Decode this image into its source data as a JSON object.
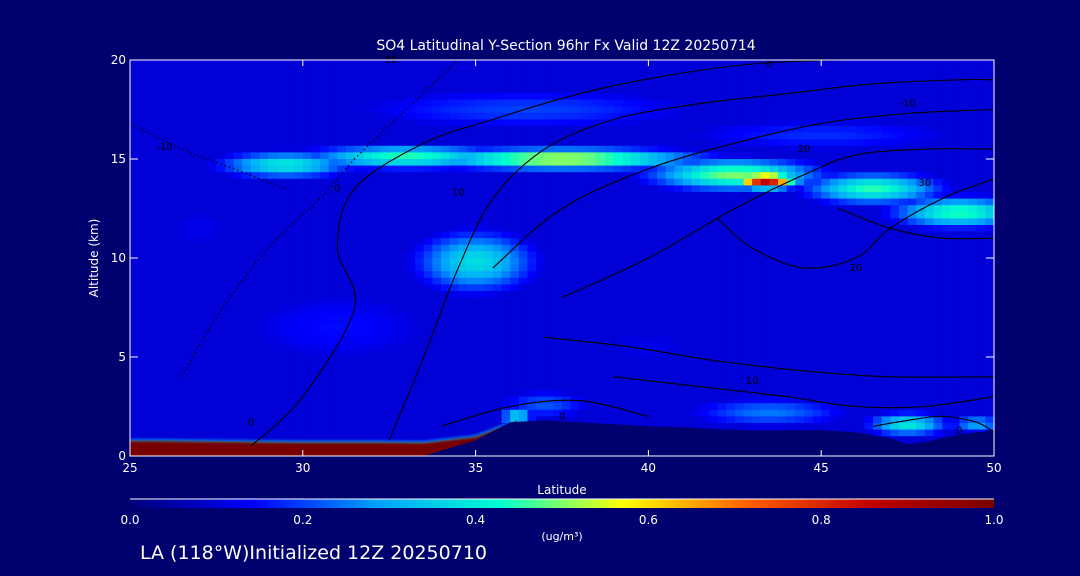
{
  "chart_data": {
    "type": "heatmap",
    "title": "SO4 Latitudinal Y-Section 96hr  Fx Valid 12Z 20250714",
    "xlabel": "Latitude",
    "ylabel": "Altitude (km)",
    "xlim": [
      25,
      50
    ],
    "ylim": [
      0,
      20
    ],
    "xticks": [
      25,
      30,
      35,
      40,
      45,
      50
    ],
    "yticks": [
      0,
      5,
      10,
      15,
      20
    ],
    "colorbar": {
      "min": 0.0,
      "max": 1.0,
      "ticks": [
        "0.0",
        "0.2",
        "0.4",
        "0.6",
        "0.8",
        "1.0"
      ],
      "units": "(ug/m³)",
      "colors": [
        "#000078",
        "#0000ff",
        "#00a0ff",
        "#00ffd0",
        "#ffff00",
        "#ff6000",
        "#c00000",
        "#780000"
      ]
    },
    "field_blobs": [
      {
        "lat": 37.5,
        "alt": 15.0,
        "value": 0.55,
        "slat": 4.0,
        "salt": 0.55
      },
      {
        "lat": 33.0,
        "alt": 15.1,
        "value": 0.45,
        "slat": 3.0,
        "salt": 0.6
      },
      {
        "lat": 29.5,
        "alt": 14.7,
        "value": 0.4,
        "slat": 2.0,
        "salt": 0.7
      },
      {
        "lat": 42.5,
        "alt": 14.2,
        "value": 0.5,
        "slat": 2.5,
        "salt": 0.8
      },
      {
        "lat": 43.4,
        "alt": 13.9,
        "value": 0.88,
        "slat": 0.9,
        "salt": 0.4
      },
      {
        "lat": 46.5,
        "alt": 13.5,
        "value": 0.45,
        "slat": 2.0,
        "salt": 0.8
      },
      {
        "lat": 49.0,
        "alt": 12.3,
        "value": 0.45,
        "slat": 2.0,
        "salt": 0.8
      },
      {
        "lat": 36.5,
        "alt": 17.5,
        "value": 0.2,
        "slat": 6.0,
        "salt": 1.2
      },
      {
        "lat": 45.0,
        "alt": 16.2,
        "value": 0.18,
        "slat": 5.0,
        "salt": 1.0
      },
      {
        "lat": 35.0,
        "alt": 9.8,
        "value": 0.38,
        "slat": 1.8,
        "salt": 1.6
      },
      {
        "lat": 31.0,
        "alt": 6.5,
        "value": 0.15,
        "slat": 4.0,
        "salt": 2.5
      },
      {
        "lat": 27.0,
        "alt": 11.5,
        "value": 0.12,
        "slat": 2.0,
        "salt": 2.0
      },
      {
        "lat": 37.0,
        "alt": 2.6,
        "value": 0.22,
        "slat": 1.5,
        "salt": 0.8
      },
      {
        "lat": 43.5,
        "alt": 2.2,
        "value": 0.25,
        "slat": 2.5,
        "salt": 0.8
      },
      {
        "lat": 47.5,
        "alt": 1.6,
        "value": 0.4,
        "slat": 1.2,
        "salt": 0.6
      },
      {
        "lat": 49.5,
        "alt": 1.6,
        "value": 0.3,
        "slat": 0.8,
        "salt": 0.5
      },
      {
        "lat": 36.2,
        "alt": 2.0,
        "value": 0.45,
        "slat": 0.5,
        "salt": 0.3
      },
      {
        "lat": 40.0,
        "alt": 5.5,
        "value": 0.12,
        "slat": 3.0,
        "salt": 1.5
      }
    ],
    "surface_layer": {
      "lat": [
        25,
        26,
        28,
        30,
        32,
        33.5,
        35,
        36.2
      ],
      "top_alt": [
        0.8,
        0.8,
        0.75,
        0.72,
        0.72,
        0.7,
        1.0,
        1.8
      ],
      "value": 1.0
    },
    "terrain": {
      "lat": [
        25,
        26,
        28,
        30,
        32,
        33.5,
        35,
        36,
        37,
        38,
        39,
        40,
        41,
        42,
        43,
        44,
        45,
        46,
        47,
        47.5,
        48,
        49,
        50
      ],
      "alt": [
        0,
        0,
        0,
        0,
        0,
        0,
        0.8,
        1.7,
        1.8,
        1.7,
        1.6,
        1.5,
        1.45,
        1.35,
        1.3,
        1.3,
        1.3,
        1.2,
        0.9,
        0.6,
        0.7,
        1.1,
        1.3
      ]
    },
    "contours": [
      {
        "label": "-10",
        "style": "dotted",
        "lat": [
          26.5,
          27.5,
          29.0,
          30.5,
          31.5,
          33.0,
          34.5
        ],
        "alt": [
          4.0,
          7.0,
          10.5,
          13.0,
          15.0,
          17.5,
          20.0
        ]
      },
      {
        "label": "-10",
        "style": "dotted",
        "lat": [
          25.0,
          26.5,
          28.0,
          29.5
        ],
        "alt": [
          16.8,
          15.5,
          14.5,
          13.5
        ]
      },
      {
        "label": "0",
        "style": "solid",
        "lat": [
          28.5,
          30.0,
          31.5,
          31.0,
          31.5,
          33.5,
          35.5,
          38.0,
          40.5,
          43.0,
          45.5,
          48.0,
          50.0
        ],
        "alt": [
          0.5,
          3.0,
          7.5,
          10.5,
          13.5,
          15.8,
          17.0,
          18.3,
          19.2,
          19.8,
          20.0,
          20.0,
          20.0
        ]
      },
      {
        "label": "10",
        "style": "solid",
        "lat": [
          32.5,
          33.5,
          34.5,
          35.5,
          37.0,
          39.0,
          41.5,
          44.0,
          46.5,
          49.0,
          50.0
        ],
        "alt": [
          0.8,
          5.0,
          9.5,
          13.0,
          15.5,
          17.0,
          17.8,
          18.3,
          18.8,
          19.0,
          19.0
        ]
      },
      {
        "label": "10",
        "style": "solid",
        "lat": [
          35.5,
          37.5,
          40.0,
          42.5,
          45.0,
          47.5,
          50.0
        ],
        "alt": [
          9.5,
          12.5,
          14.5,
          15.8,
          16.8,
          17.3,
          17.5
        ]
      },
      {
        "label": "20",
        "style": "solid",
        "lat": [
          37.5,
          40.0,
          42.5,
          44.5,
          46.0,
          48.0,
          50.0
        ],
        "alt": [
          8.0,
          10.0,
          12.5,
          14.2,
          15.2,
          15.5,
          15.5
        ]
      },
      {
        "label": "20",
        "style": "solid",
        "lat": [
          42.0,
          43.0,
          44.5,
          46.0,
          47.0,
          48.5,
          50.0
        ],
        "alt": [
          12.0,
          10.5,
          9.5,
          10.0,
          11.5,
          13.0,
          14.0
        ]
      },
      {
        "label": "30",
        "style": "solid",
        "lat": [
          45.5,
          47.0,
          48.5,
          50.0
        ],
        "alt": [
          12.5,
          11.5,
          11.0,
          11.0
        ]
      },
      {
        "label": "10",
        "style": "solid",
        "lat": [
          37.0,
          39.5,
          42.0,
          44.5,
          47.0,
          50.0
        ],
        "alt": [
          6.0,
          5.5,
          4.8,
          4.3,
          4.0,
          4.0
        ]
      },
      {
        "label": "10",
        "style": "solid",
        "lat": [
          39.0,
          41.5,
          44.0,
          46.0,
          48.0,
          50.0
        ],
        "alt": [
          4.0,
          3.5,
          3.0,
          2.5,
          2.5,
          3.0
        ]
      },
      {
        "label": "0",
        "style": "solid",
        "lat": [
          34.0,
          36.0,
          38.0,
          40.0
        ],
        "alt": [
          1.5,
          2.5,
          2.8,
          2.0
        ]
      },
      {
        "label": "0",
        "style": "solid",
        "lat": [
          46.5,
          47.5,
          48.5,
          49.5,
          50.0
        ],
        "alt": [
          1.5,
          1.8,
          2.0,
          1.7,
          1.2
        ]
      }
    ],
    "contour_labels": [
      {
        "text": "-10",
        "lat": 32.5,
        "alt": 20.0
      },
      {
        "text": "0",
        "lat": 43.5,
        "alt": 19.8
      },
      {
        "text": "-10",
        "lat": 47.5,
        "alt": 17.8
      },
      {
        "text": "-10",
        "lat": 26.0,
        "alt": 15.6
      },
      {
        "text": "20",
        "lat": 44.5,
        "alt": 15.5
      },
      {
        "text": "0",
        "lat": 31.0,
        "alt": 13.5
      },
      {
        "text": "10",
        "lat": 34.5,
        "alt": 13.3
      },
      {
        "text": "30",
        "lat": 48.0,
        "alt": 13.8
      },
      {
        "text": "20",
        "lat": 46.0,
        "alt": 9.5
      },
      {
        "text": "0",
        "lat": 28.5,
        "alt": 1.7
      },
      {
        "text": "0",
        "lat": 37.5,
        "alt": 2.0
      },
      {
        "text": "10",
        "lat": 43.0,
        "alt": 3.8
      },
      {
        "text": "0",
        "lat": 49.0,
        "alt": 1.3
      }
    ]
  },
  "footer": "LA (118°W)Initialized 12Z 20250710"
}
